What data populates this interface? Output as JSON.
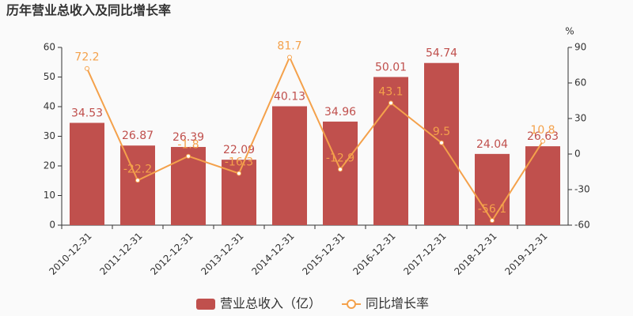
{
  "chart_data": {
    "type": "bar",
    "title": "历年营业总收入及同比增长率",
    "categories": [
      "2010-12-31",
      "2011-12-31",
      "2012-12-31",
      "2013-12-31",
      "2014-12-31",
      "2015-12-31",
      "2016-12-31",
      "2017-12-31",
      "2018-12-31",
      "2019-12-31"
    ],
    "series": [
      {
        "name": "营业总收入（亿）",
        "type": "bar",
        "color": "#c0504d",
        "values": [
          34.53,
          26.87,
          26.39,
          22.09,
          40.13,
          34.96,
          50.01,
          54.74,
          24.04,
          26.63
        ]
      },
      {
        "name": "同比增长率",
        "type": "line",
        "axis": "y2",
        "color": "#f4a14b",
        "values": [
          72.2,
          -22.2,
          -1.8,
          -16.3,
          81.7,
          -12.9,
          43.1,
          9.5,
          -56.1,
          10.8
        ]
      }
    ],
    "ylim": [
      0,
      60
    ],
    "yticks": [
      0,
      10,
      20,
      30,
      40,
      50,
      60
    ],
    "y2lim": [
      -60,
      90
    ],
    "y2ticks": [
      -60,
      -30,
      0,
      30,
      60,
      90
    ],
    "y2label": "%",
    "grid": false,
    "legend": "bottom"
  }
}
